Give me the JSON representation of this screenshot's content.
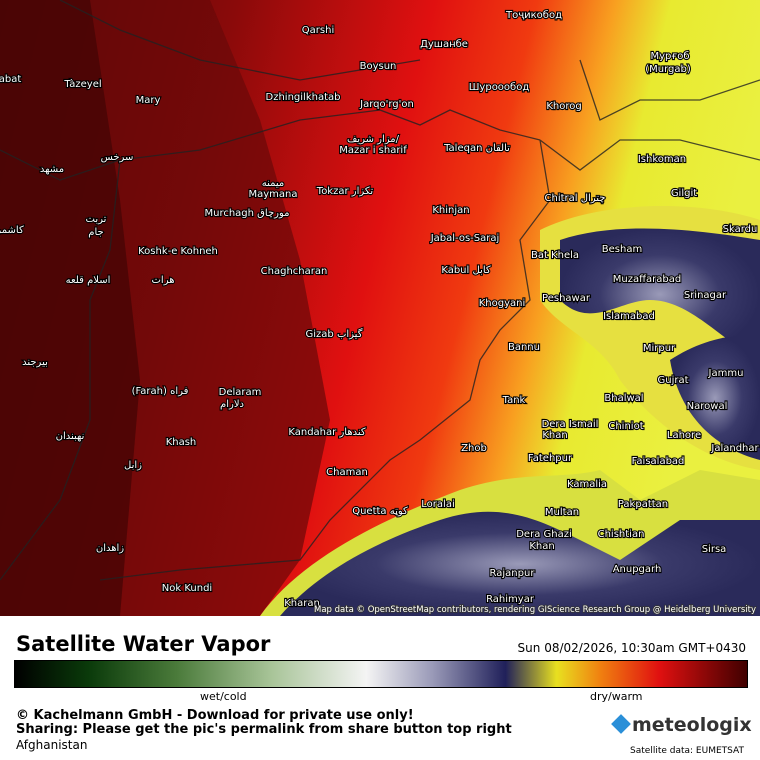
{
  "map": {
    "labels": [
      "Qarshi",
      "Душанбе",
      "Boysun",
      "Tàzeyel",
      "Mary",
      "Dzhingilkhatab",
      "Jarqo'rg'on",
      "Шуроообод",
      "Тоҷикобод",
      "Мурғоб",
      "(Murgab)",
      "Khorog",
      "مزار شریف/",
      "Mazar i sharif",
      "Taleqan تالقان",
      "Ishkoman",
      "Gilgit",
      "Chitral چترال",
      "Skardu",
      "Tokzar تکزار",
      "میمنه",
      "Maymana",
      "Murchagh مورچاق",
      "Khinjan",
      "Jabal-os-Saraj",
      "Bat Khela",
      "Besham",
      "Koshk-e Kohneh",
      "Muzaffarabad",
      "Chaghcharan",
      "Kabul کابل",
      "Peshawar",
      "Srinagar",
      "Khogyani",
      "Islamabad",
      "Gizab گیزاب",
      "Bannu",
      "Mirpur",
      "Jammu",
      "Gujrat",
      "(Farah) فراه",
      "Delaram",
      "دلارام",
      "Tank",
      "Bhalwal",
      "Narowal",
      "Dera Ismail",
      "Khan",
      "Chiniot",
      "Lahore",
      "Kandahar کندهار",
      "Khash",
      "Jalandhar",
      "Zhob",
      "Fatehpur",
      "Faisalabad",
      "Chaman",
      "Kamalia",
      "Loralai",
      "Multan",
      "Pakpattan",
      "Quetta کوټه",
      "Dera Ghazi",
      "Khan",
      "Chishtian",
      "Sirsa",
      "Rajanpur",
      "Anupgarh",
      "Nok Kundi",
      "Kharan",
      "Rahimyar",
      "مشهد",
      "سرخس",
      "تربت",
      "جام",
      "کاشمر",
      "اسلام قلعه",
      "هرات",
      "بیرجند",
      "نهبندان",
      "زابل",
      "زاهدان",
      "abat"
    ],
    "attribution": "Map data © OpenStreetMap contributors, rendering GIScience Research Group @ Heidelberg University"
  },
  "footer": {
    "title": "Satellite Water Vapor",
    "datetime": "Sun 08/02/2026, 10:30am GMT+0430",
    "scale_left": "wet/cold",
    "scale_right": "dry/warm",
    "copyright": "© Kachelmann GmbH - Download for private use only!",
    "sharing": "Sharing: Please get the pic's permalink from share button top right",
    "region": "Afghanistan",
    "brand": "meteologix",
    "source": "Satellite data: EUMETSAT"
  }
}
